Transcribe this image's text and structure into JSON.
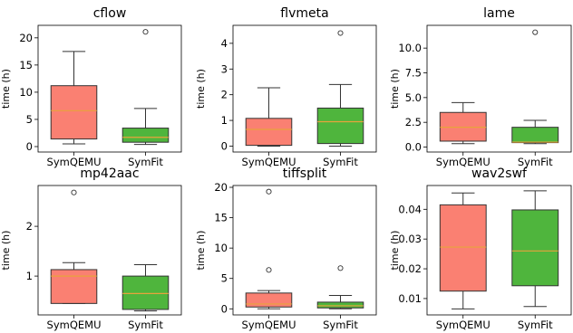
{
  "chart_data": [
    {
      "type": "box",
      "title": "cflow",
      "ylabel": "time (h)",
      "categories": [
        "SymQEMU",
        "SymFit"
      ],
      "ylim": [
        -1.0,
        22.3
      ],
      "yticks": [
        0,
        5,
        10,
        15,
        20
      ],
      "ytick_labels": [
        "0",
        "5",
        "10",
        "15",
        "20"
      ],
      "boxes": [
        {
          "whisker_low": 0.5,
          "q1": 1.4,
          "median": 6.6,
          "q3": 11.2,
          "whisker_high": 17.5,
          "outliers": [],
          "color": "#fa8072"
        },
        {
          "whisker_low": 0.4,
          "q1": 0.8,
          "median": 1.7,
          "q3": 3.4,
          "whisker_high": 7.0,
          "outliers": [
            21.1
          ],
          "color": "#4fb53d"
        }
      ]
    },
    {
      "type": "box",
      "title": "flvmeta",
      "ylabel": "time (h)",
      "categories": [
        "SymQEMU",
        "SymFit"
      ],
      "ylim": [
        -0.23,
        4.7
      ],
      "yticks": [
        0,
        1,
        2,
        3,
        4
      ],
      "ytick_labels": [
        "0",
        "1",
        "2",
        "3",
        "4"
      ],
      "boxes": [
        {
          "whisker_low": 0.0,
          "q1": 0.03,
          "median": 0.65,
          "q3": 1.08,
          "whisker_high": 2.27,
          "outliers": [],
          "color": "#fa8072"
        },
        {
          "whisker_low": 0.0,
          "q1": 0.1,
          "median": 0.95,
          "q3": 1.48,
          "whisker_high": 2.4,
          "outliers": [
            4.4
          ],
          "color": "#4fb53d"
        }
      ]
    },
    {
      "type": "box",
      "title": "lame",
      "ylabel": "time (h)",
      "categories": [
        "SymQEMU",
        "SymFit"
      ],
      "ylim": [
        -0.5,
        12.3
      ],
      "yticks": [
        0.0,
        2.5,
        5.0,
        7.5,
        10.0
      ],
      "ytick_labels": [
        "0.0",
        "2.5",
        "5.0",
        "7.5",
        "10.0"
      ],
      "boxes": [
        {
          "whisker_low": 0.35,
          "q1": 0.6,
          "median": 2.0,
          "q3": 3.5,
          "whisker_high": 4.5,
          "outliers": [],
          "color": "#fa8072"
        },
        {
          "whisker_low": 0.35,
          "q1": 0.45,
          "median": 0.5,
          "q3": 2.0,
          "whisker_high": 2.7,
          "outliers": [
            11.6
          ],
          "color": "#4fb53d"
        }
      ]
    },
    {
      "type": "box",
      "title": "mp42aac",
      "ylabel": "time (h)",
      "categories": [
        "SymQEMU",
        "SymFit"
      ],
      "ylim": [
        0.22,
        2.82
      ],
      "yticks": [
        1,
        2
      ],
      "ytick_labels": [
        "1",
        "2"
      ],
      "boxes": [
        {
          "whisker_low": 0.45,
          "q1": 0.45,
          "median": 1.0,
          "q3": 1.13,
          "whisker_high": 1.27,
          "outliers": [
            2.68
          ],
          "color": "#fa8072"
        },
        {
          "whisker_low": 0.3,
          "q1": 0.33,
          "median": 0.65,
          "q3": 1.0,
          "whisker_high": 1.23,
          "outliers": [],
          "color": "#4fb53d"
        }
      ]
    },
    {
      "type": "box",
      "title": "tiffsplit",
      "ylabel": "time (h)",
      "categories": [
        "SymQEMU",
        "SymFit"
      ],
      "ylim": [
        -1.0,
        20.3
      ],
      "yticks": [
        0,
        5,
        10,
        15,
        20
      ],
      "ytick_labels": [
        "0",
        "5",
        "10",
        "15",
        "20"
      ],
      "boxes": [
        {
          "whisker_low": 0.0,
          "q1": 0.3,
          "median": 0.8,
          "q3": 2.6,
          "whisker_high": 3.0,
          "outliers": [
            6.4,
            19.3
          ],
          "color": "#fa8072"
        },
        {
          "whisker_low": 0.0,
          "q1": 0.15,
          "median": 0.5,
          "q3": 1.1,
          "whisker_high": 2.2,
          "outliers": [
            6.7
          ],
          "color": "#4fb53d"
        }
      ]
    },
    {
      "type": "box",
      "title": "wav2swf",
      "ylabel": "time (h)",
      "categories": [
        "SymQEMU",
        "SymFit"
      ],
      "ylim": [
        0.0045,
        0.048
      ],
      "yticks": [
        0.01,
        0.02,
        0.03,
        0.04
      ],
      "ytick_labels": [
        "0.01",
        "0.02",
        "0.03",
        "0.04"
      ],
      "boxes": [
        {
          "whisker_low": 0.0065,
          "q1": 0.0125,
          "median": 0.0273,
          "q3": 0.0415,
          "whisker_high": 0.0455,
          "outliers": [],
          "color": "#fa8072"
        },
        {
          "whisker_low": 0.0073,
          "q1": 0.0143,
          "median": 0.026,
          "q3": 0.0398,
          "whisker_high": 0.0462,
          "outliers": [],
          "color": "#4fb53d"
        }
      ]
    }
  ]
}
